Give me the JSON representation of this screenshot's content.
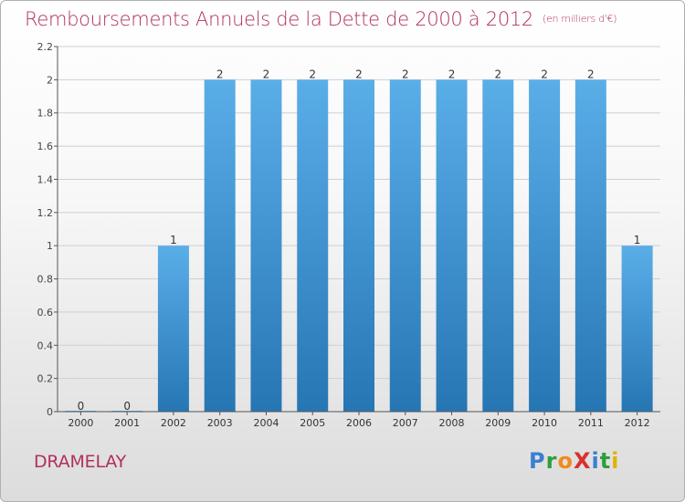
{
  "page": {
    "title": "Remboursements Annuels de la Dette de 2000 à 2012",
    "subtitle": "(en milliers d'€)",
    "city": "DRAMELAY",
    "brand": "ProXiti"
  },
  "colors": {
    "title": "#b03060",
    "bar_top": "#5aaee8",
    "bar_bottom": "#2676b4",
    "grid": "#d0d0d0"
  },
  "chart_data": {
    "type": "bar",
    "title": "Remboursements Annuels de la Dette de 2000 à 2012",
    "subtitle": "(en milliers d'€)",
    "xlabel": "",
    "ylabel": "",
    "categories": [
      "2000",
      "2001",
      "2002",
      "2003",
      "2004",
      "2005",
      "2006",
      "2007",
      "2008",
      "2009",
      "2010",
      "2011",
      "2012"
    ],
    "values": [
      0,
      0,
      1,
      2,
      2,
      2,
      2,
      2,
      2,
      2,
      2,
      2,
      1
    ],
    "data_labels": [
      "0",
      "0",
      "1",
      "2",
      "2",
      "2",
      "2",
      "2",
      "2",
      "2",
      "2",
      "2",
      "1"
    ],
    "ylim": [
      0,
      2.2
    ],
    "yticks": [
      0,
      0.2,
      0.4,
      0.6,
      0.8,
      1,
      1.2,
      1.4,
      1.6,
      1.8,
      2,
      2.2
    ],
    "ytick_labels": [
      "0",
      "0.2",
      "0.4",
      "0.6",
      "0.8",
      "1",
      "1.2",
      "1.4",
      "1.6",
      "1.8",
      "2",
      "2.2"
    ],
    "grid": true,
    "legend": "none"
  }
}
